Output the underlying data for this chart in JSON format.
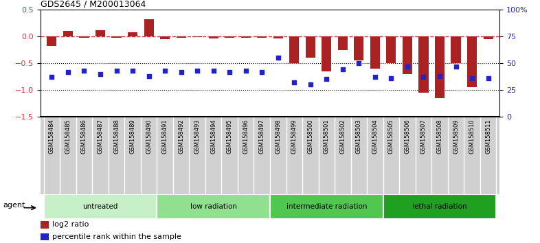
{
  "title": "GDS2645 / M200013064",
  "samples": [
    "GSM158484",
    "GSM158485",
    "GSM158486",
    "GSM158487",
    "GSM158488",
    "GSM158489",
    "GSM158490",
    "GSM158491",
    "GSM158492",
    "GSM158493",
    "GSM158494",
    "GSM158495",
    "GSM158496",
    "GSM158497",
    "GSM158498",
    "GSM158499",
    "GSM158500",
    "GSM158501",
    "GSM158502",
    "GSM158503",
    "GSM158504",
    "GSM158505",
    "GSM158506",
    "GSM158507",
    "GSM158508",
    "GSM158509",
    "GSM158510",
    "GSM158511"
  ],
  "log2_ratio": [
    -0.18,
    0.1,
    -0.03,
    0.12,
    -0.02,
    0.08,
    0.32,
    -0.05,
    -0.03,
    -0.01,
    -0.04,
    -0.03,
    -0.03,
    -0.02,
    -0.04,
    -0.5,
    -0.4,
    -0.65,
    -0.25,
    -0.45,
    -0.6,
    -0.5,
    -0.7,
    -1.05,
    -1.15,
    -0.5,
    -0.95,
    -0.05
  ],
  "percentile_rank": [
    37,
    42,
    43,
    40,
    43,
    43,
    38,
    43,
    42,
    43,
    43,
    42,
    43,
    42,
    55,
    32,
    30,
    35,
    44,
    50,
    37,
    36,
    47,
    37,
    38,
    47,
    36,
    36
  ],
  "groups": [
    {
      "label": "untreated",
      "start": 0,
      "end": 7,
      "color": "#c8f0c8"
    },
    {
      "label": "low radiation",
      "start": 7,
      "end": 14,
      "color": "#90e090"
    },
    {
      "label": "intermediate radiation",
      "start": 14,
      "end": 21,
      "color": "#50c850"
    },
    {
      "label": "lethal radiation",
      "start": 21,
      "end": 28,
      "color": "#20a020"
    }
  ],
  "bar_color": "#aa2222",
  "dot_color": "#2222cc",
  "ref_line_color": "#cc3333",
  "ylim_left": [
    -1.5,
    0.5
  ],
  "ylim_right": [
    0,
    100
  ],
  "yticks_left": [
    -1.5,
    -1.0,
    -0.5,
    0.0,
    0.5
  ],
  "yticks_right": [
    0,
    25,
    50,
    75,
    100
  ],
  "background_color": "#ffffff",
  "tick_bg_color": "#d0d0d0",
  "agent_label": "agent"
}
